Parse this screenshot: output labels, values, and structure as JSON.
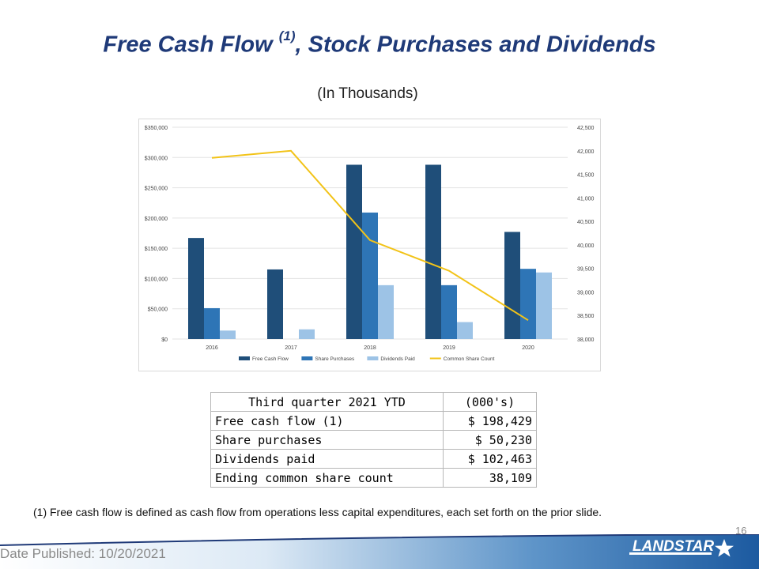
{
  "title": {
    "main": "Free Cash Flow",
    "sup": "(1)",
    "rest": ", Stock Purchases and Dividends"
  },
  "subtitle": "(In Thousands)",
  "chart_data": {
    "type": "bar",
    "categories": [
      "2016",
      "2017",
      "2018",
      "2019",
      "2020"
    ],
    "series": [
      {
        "name": "Free Cash Flow",
        "kind": "bar",
        "color": "#1F4E79",
        "values": [
          167000,
          115000,
          288000,
          288000,
          177000
        ]
      },
      {
        "name": "Share Purchases",
        "kind": "bar",
        "color": "#2E75B6",
        "values": [
          51000,
          null,
          209000,
          89000,
          116000
        ]
      },
      {
        "name": "Dividends Paid",
        "kind": "bar",
        "color": "#9DC3E6",
        "values": [
          14000,
          16000,
          89000,
          28000,
          110000
        ]
      },
      {
        "name": "Common Share Count",
        "kind": "line",
        "axis": "right",
        "color": "#F2C318",
        "values": [
          41850,
          42000,
          40100,
          39450,
          38400
        ]
      }
    ],
    "y_left": {
      "min": 0,
      "max": 350000,
      "ticks": [
        "$0",
        "$50,000",
        "$100,000",
        "$150,000",
        "$200,000",
        "$250,000",
        "$300,000",
        "$350,000"
      ]
    },
    "y_right": {
      "min": 38000,
      "max": 42500,
      "ticks": [
        "38,000",
        "38,500",
        "39,000",
        "39,500",
        "40,000",
        "40,500",
        "41,000",
        "41,500",
        "42,000",
        "42,500"
      ]
    },
    "grid": true,
    "legend_position": "bottom"
  },
  "table": {
    "header": [
      "Third quarter 2021 YTD",
      "(000's)"
    ],
    "rows": [
      {
        "label": "Free cash flow (1)",
        "value": "$  198,429"
      },
      {
        "label": "Share purchases",
        "value": "$    50,230"
      },
      {
        "label": "Dividends paid",
        "value": "$  102,463"
      },
      {
        "label": "Ending common share count",
        "value": "38,109"
      }
    ]
  },
  "footnote": "(1)  Free cash flow is defined as cash flow from operations less capital expenditures, each set forth on the prior slide.",
  "page_number": "16",
  "date_published": "Date Published:  10/20/2021",
  "logo_text": "LANDSTAR"
}
